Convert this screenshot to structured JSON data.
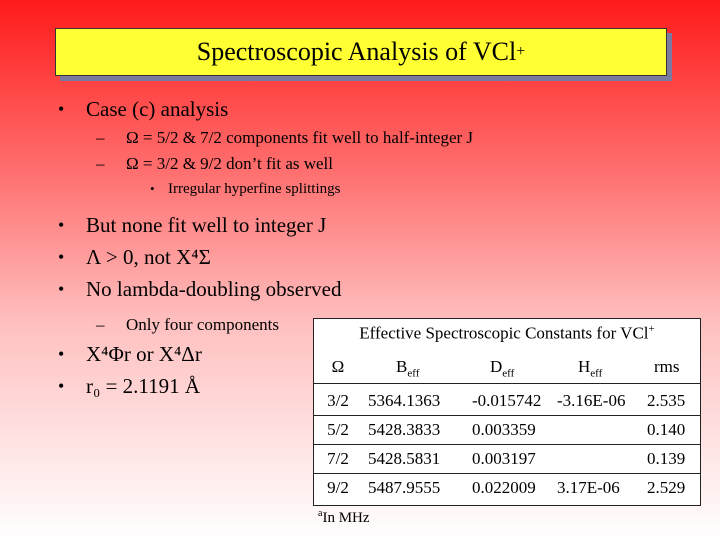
{
  "title": {
    "text": "Spectroscopic Analysis of VCl",
    "sup": "+"
  },
  "bullets": {
    "b1": "Case (c) analysis",
    "b1_sub1": "Ω = 5/2 & 7/2 components fit well to half-integer J",
    "b1_sub2": "Ω = 3/2 & 9/2 don’t fit as well",
    "b1_sub2_sub": "Irregular hyperfine splittings",
    "b2": "But none fit well to integer J",
    "b3": "Λ > 0, not X⁴Σ",
    "b4": "No lambda-doubling observed",
    "b4_sub1": "Only four components",
    "b5": "X⁴Φr or X⁴Δr",
    "b6": "r₀ = 2.1191 Å"
  },
  "table": {
    "title": "Effective Spectroscopic Constants for VCl",
    "title_sup": "+",
    "headers": {
      "omega": "Ω",
      "b": "B",
      "b_sub": "eff",
      "d": "D",
      "d_sub": "eff",
      "h": "H",
      "h_sub": "eff",
      "rms": "rms"
    },
    "rows": [
      {
        "omega": "3/2",
        "b": "5364.1363",
        "d": "-0.015742",
        "h": "-3.16E-06",
        "rms": "2.535"
      },
      {
        "omega": "5/2",
        "b": "5428.3833",
        "d": "0.003359",
        "h": "",
        "rms": "0.140"
      },
      {
        "omega": "7/2",
        "b": "5428.5831",
        "d": "0.003197",
        "h": "",
        "rms": "0.139"
      },
      {
        "omega": "9/2",
        "b": "5487.9555",
        "d": "0.022009",
        "h": "3.17E-06",
        "rms": "2.529"
      }
    ],
    "footnote_sup": "a",
    "footnote": "In MHz"
  }
}
